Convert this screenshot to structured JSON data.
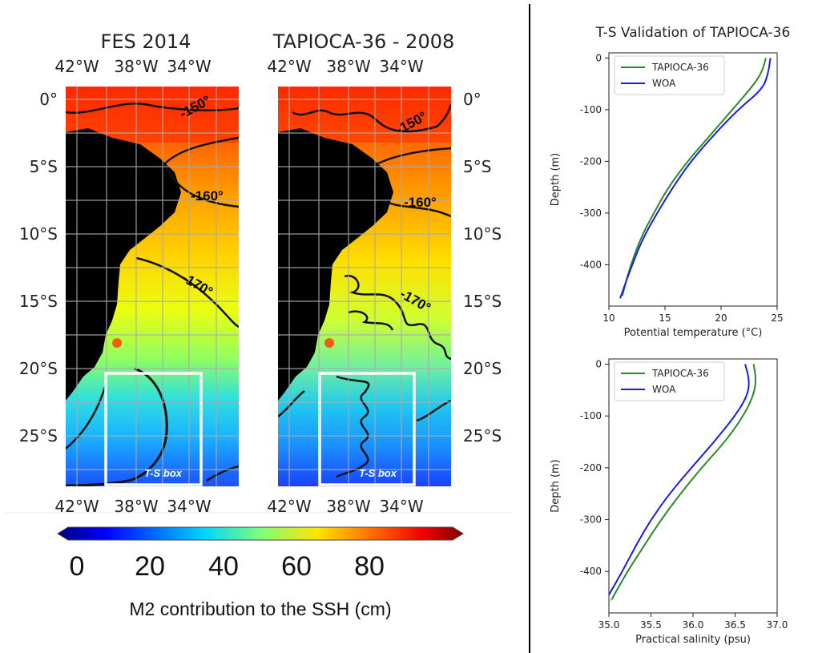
{
  "maps": {
    "left_title": "FES 2014",
    "right_title": "TAPIOCA-36 - 2008",
    "lon_ticks": [
      "42°W",
      "38°W",
      "34°W"
    ],
    "lat_ticks": [
      "0°",
      "5°S",
      "10°S",
      "15°S",
      "20°S",
      "25°S"
    ],
    "left_contour_labels": [
      "-150°",
      "-160°",
      "-170°"
    ],
    "right_contour_labels": [
      "-150°",
      "-160°",
      "-170°"
    ],
    "box_label": "T-S box",
    "colorbar": {
      "ticks": [
        "0",
        "20",
        "40",
        "60",
        "80"
      ],
      "label": "M2 contribution to the SSH (cm)",
      "range": [
        0,
        100
      ]
    },
    "colors": {
      "land": "#000000",
      "box": "#ffffff"
    }
  },
  "chart_data": [
    {
      "type": "line",
      "title": "T-S Validation of TAPIOCA-36",
      "xlabel": "Potential temperature (°C)",
      "ylabel": "Depth (m)",
      "xlim": [
        10,
        25
      ],
      "ylim": [
        -480,
        10
      ],
      "xticks": [
        "10",
        "15",
        "20",
        "25"
      ],
      "yticks": [
        "0",
        "-100",
        "-200",
        "-300",
        "-400"
      ],
      "legend_position": "top-left",
      "series": [
        {
          "name": "TAPIOCA-36",
          "color": "#2a8a2a",
          "x": [
            24.0,
            23.6,
            22.6,
            21.0,
            19.0,
            17.0,
            15.3,
            14.0,
            12.8,
            11.8,
            11.2
          ],
          "y": [
            0,
            -30,
            -60,
            -100,
            -150,
            -200,
            -250,
            -300,
            -350,
            -410,
            -460
          ]
        },
        {
          "name": "WOA",
          "color": "#1a1aee",
          "x": [
            24.4,
            24.2,
            23.7,
            21.5,
            19.3,
            17.3,
            15.7,
            14.3,
            13.0,
            11.9,
            11.0
          ],
          "y": [
            0,
            -30,
            -60,
            -100,
            -150,
            -200,
            -250,
            -300,
            -350,
            -410,
            -465
          ]
        }
      ]
    },
    {
      "type": "line",
      "title": "",
      "xlabel": "Practical salinity (psu)",
      "ylabel": "Depth (m)",
      "xlim": [
        35.0,
        37.0
      ],
      "ylim": [
        -480,
        10
      ],
      "xticks": [
        "35.0",
        "35.5",
        "36.0",
        "36.5",
        "37.0"
      ],
      "yticks": [
        "0",
        "-100",
        "-200",
        "-300",
        "-400"
      ],
      "legend_position": "top-left",
      "series": [
        {
          "name": "TAPIOCA-36",
          "color": "#2a8a2a",
          "x": [
            36.72,
            36.75,
            36.72,
            36.6,
            36.38,
            36.1,
            35.85,
            35.62,
            35.42,
            35.22,
            35.03
          ],
          "y": [
            0,
            -30,
            -60,
            -100,
            -150,
            -200,
            -250,
            -300,
            -350,
            -400,
            -455
          ]
        },
        {
          "name": "WOA",
          "color": "#1a1aee",
          "x": [
            36.62,
            36.67,
            36.65,
            36.5,
            36.25,
            35.98,
            35.72,
            35.5,
            35.32,
            35.16,
            35.0
          ],
          "y": [
            0,
            -30,
            -60,
            -100,
            -150,
            -200,
            -250,
            -300,
            -350,
            -400,
            -445
          ]
        }
      ]
    }
  ]
}
